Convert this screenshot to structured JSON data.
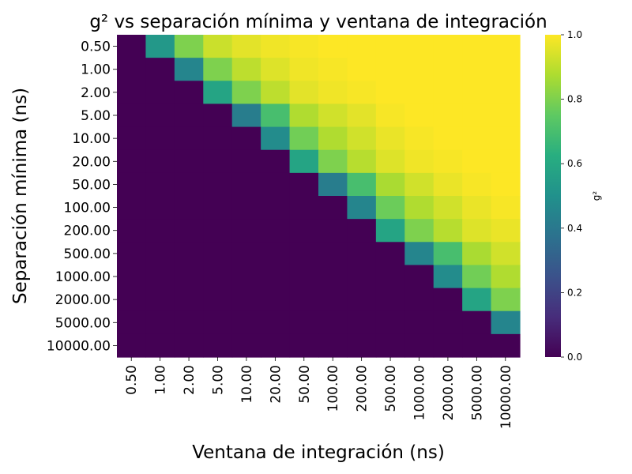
{
  "chart_data": {
    "type": "heatmap",
    "title": "g² vs separación mínima y ventana de integración",
    "xlabel": "Ventana de integración (ns)",
    "ylabel": "Separación mínima (ns)",
    "x_categories": [
      "0.50",
      "1.00",
      "2.00",
      "5.00",
      "10.00",
      "20.00",
      "50.00",
      "100.00",
      "200.00",
      "500.00",
      "1000.00",
      "2000.00",
      "5000.00",
      "10000.00"
    ],
    "y_categories": [
      "0.50",
      "1.00",
      "2.00",
      "5.00",
      "10.00",
      "20.00",
      "50.00",
      "100.00",
      "200.00",
      "500.00",
      "1000.00",
      "2000.00",
      "5000.00",
      "10000.00"
    ],
    "values": [
      [
        0.0,
        0.53,
        0.8,
        0.92,
        0.96,
        0.98,
        0.99,
        1.0,
        1.0,
        1.0,
        1.0,
        1.0,
        1.0,
        1.0
      ],
      [
        0.0,
        0.0,
        0.45,
        0.8,
        0.9,
        0.95,
        0.98,
        0.99,
        1.0,
        1.0,
        1.0,
        1.0,
        1.0,
        1.0
      ],
      [
        0.0,
        0.0,
        0.0,
        0.58,
        0.8,
        0.9,
        0.96,
        0.98,
        0.99,
        1.0,
        1.0,
        1.0,
        1.0,
        1.0
      ],
      [
        0.0,
        0.0,
        0.0,
        0.0,
        0.42,
        0.7,
        0.88,
        0.93,
        0.96,
        0.99,
        1.0,
        1.0,
        1.0,
        1.0
      ],
      [
        0.0,
        0.0,
        0.0,
        0.0,
        0.0,
        0.48,
        0.78,
        0.88,
        0.93,
        0.97,
        0.99,
        1.0,
        1.0,
        1.0
      ],
      [
        0.0,
        0.0,
        0.0,
        0.0,
        0.0,
        0.0,
        0.58,
        0.8,
        0.89,
        0.95,
        0.98,
        0.99,
        1.0,
        1.0
      ],
      [
        0.0,
        0.0,
        0.0,
        0.0,
        0.0,
        0.0,
        0.0,
        0.42,
        0.7,
        0.87,
        0.93,
        0.97,
        0.99,
        1.0
      ],
      [
        0.0,
        0.0,
        0.0,
        0.0,
        0.0,
        0.0,
        0.0,
        0.0,
        0.45,
        0.77,
        0.88,
        0.93,
        0.97,
        0.99
      ],
      [
        0.0,
        0.0,
        0.0,
        0.0,
        0.0,
        0.0,
        0.0,
        0.0,
        0.0,
        0.58,
        0.8,
        0.89,
        0.95,
        0.97
      ],
      [
        0.0,
        0.0,
        0.0,
        0.0,
        0.0,
        0.0,
        0.0,
        0.0,
        0.0,
        0.0,
        0.45,
        0.7,
        0.87,
        0.93
      ],
      [
        0.0,
        0.0,
        0.0,
        0.0,
        0.0,
        0.0,
        0.0,
        0.0,
        0.0,
        0.0,
        0.0,
        0.48,
        0.78,
        0.88
      ],
      [
        0.0,
        0.0,
        0.0,
        0.0,
        0.0,
        0.0,
        0.0,
        0.0,
        0.0,
        0.0,
        0.0,
        0.0,
        0.58,
        0.8
      ],
      [
        0.0,
        0.0,
        0.0,
        0.0,
        0.0,
        0.0,
        0.0,
        0.0,
        0.0,
        0.0,
        0.0,
        0.0,
        0.0,
        0.45
      ],
      [
        0.0,
        0.0,
        0.0,
        0.0,
        0.0,
        0.0,
        0.0,
        0.0,
        0.0,
        0.0,
        0.0,
        0.0,
        0.0,
        0.0
      ]
    ],
    "colormap": "viridis",
    "vmin": 0.0,
    "vmax": 1.0,
    "colorbar": {
      "label": "g²",
      "ticks": [
        "0.0",
        "0.2",
        "0.4",
        "0.6",
        "0.8",
        "1.0"
      ]
    }
  }
}
